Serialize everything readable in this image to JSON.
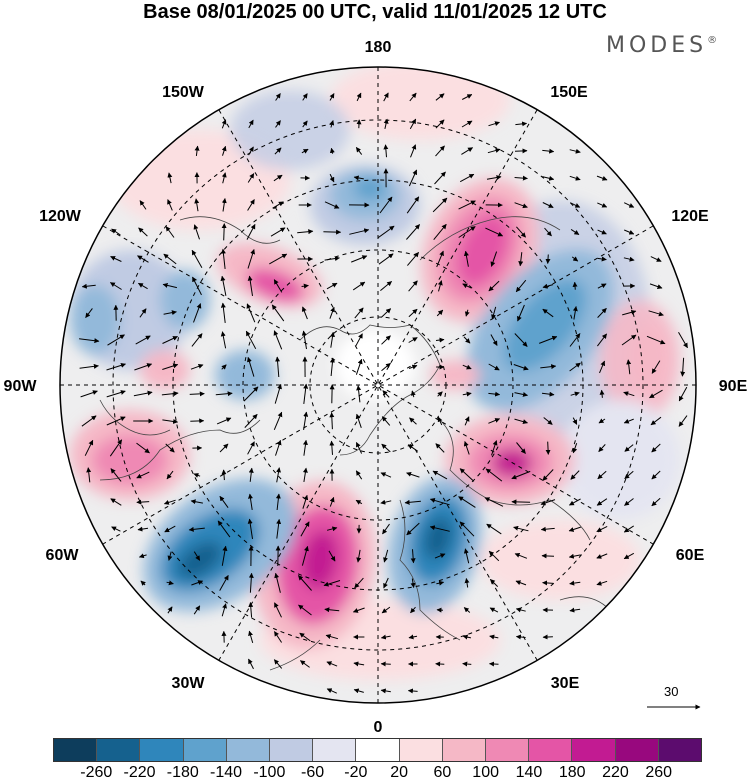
{
  "title": "Base 08/01/2025 00 UTC, valid 11/01/2025 12 UTC",
  "brand": "MODES",
  "brand_mark": "®",
  "longitude_labels": {
    "top": "180",
    "top_left": "150W",
    "top_right": "150E",
    "left_upper": "120W",
    "right_upper": "120E",
    "left": "90W",
    "right": "90E",
    "left_lower": "60W",
    "right_lower": "60E",
    "bottom_left": "30W",
    "bottom_right": "30E",
    "bottom": "0"
  },
  "reference_vector": "30",
  "colorbar": {
    "colors": [
      "#0d3d5c",
      "#15618e",
      "#2f86bb",
      "#5fa2cd",
      "#93b9da",
      "#c0cbe3",
      "#e4e5f1",
      "#ffffff",
      "#fbdfe1",
      "#f5b8c6",
      "#ef89b4",
      "#e455a6",
      "#c21b92",
      "#98087e",
      "#5c0c6e"
    ],
    "labels": [
      "-260",
      "-220",
      "-180",
      "-140",
      "-100",
      "-60",
      "-20",
      "20",
      "60",
      "100",
      "140",
      "180",
      "220",
      "260"
    ]
  },
  "anomaly_centers": [
    {
      "sign": "positive",
      "level": "180-220",
      "region": "east Siberia / 150E"
    },
    {
      "sign": "positive",
      "level": "140-180",
      "region": "central Asia / 60E-90E"
    },
    {
      "sign": "positive",
      "level": "180-220",
      "region": "North Atlantic / 30W"
    },
    {
      "sign": "positive",
      "level": "140-180",
      "region": "North America / 75W"
    },
    {
      "sign": "positive",
      "level": "100-140",
      "region": "Gulf of Alaska / 150W"
    },
    {
      "sign": "negative",
      "level": "-140 to -180",
      "region": "Bering / 170W"
    },
    {
      "sign": "negative",
      "level": "-180 to -220",
      "region": "Scandinavia / 10E-30E"
    },
    {
      "sign": "negative",
      "level": "-180 to -220",
      "region": "North Atlantic / 50W"
    },
    {
      "sign": "negative",
      "level": "-100 to -140",
      "region": "Siberia / 100E"
    },
    {
      "sign": "negative",
      "level": "-60 to -100",
      "region": "Canada / 105W"
    }
  ]
}
